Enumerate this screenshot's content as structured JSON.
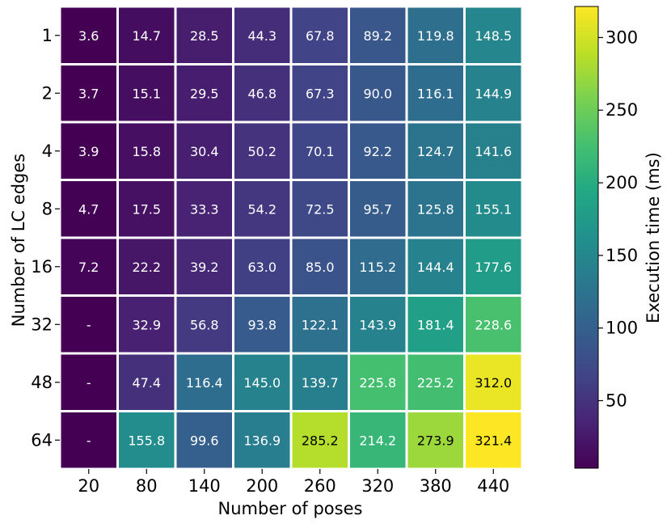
{
  "chart_data": {
    "type": "heatmap",
    "xlabel": "Number of poses",
    "ylabel": "Number of LC edges",
    "x_categories": [
      "20",
      "80",
      "140",
      "200",
      "260",
      "320",
      "380",
      "440"
    ],
    "y_categories": [
      "1",
      "2",
      "4",
      "8",
      "16",
      "32",
      "48",
      "64"
    ],
    "values": [
      [
        3.6,
        14.7,
        28.5,
        44.3,
        67.8,
        89.2,
        119.8,
        148.5
      ],
      [
        3.7,
        15.1,
        29.5,
        46.8,
        67.3,
        90.0,
        116.1,
        144.9
      ],
      [
        3.9,
        15.8,
        30.4,
        50.2,
        70.1,
        92.2,
        124.7,
        141.6
      ],
      [
        4.7,
        17.5,
        33.3,
        54.2,
        72.5,
        95.7,
        125.8,
        155.1
      ],
      [
        7.2,
        22.2,
        39.2,
        63.0,
        85.0,
        115.2,
        144.4,
        177.6
      ],
      [
        null,
        32.9,
        56.8,
        93.8,
        122.1,
        143.9,
        181.4,
        228.6
      ],
      [
        null,
        47.4,
        116.4,
        145.0,
        139.7,
        225.8,
        225.2,
        312.0
      ],
      [
        null,
        155.8,
        99.6,
        136.9,
        285.2,
        214.2,
        273.9,
        321.4
      ]
    ],
    "cell_labels": [
      [
        "3.6",
        "14.7",
        "28.5",
        "44.3",
        "67.8",
        "89.2",
        "119.8",
        "148.5"
      ],
      [
        "3.7",
        "15.1",
        "29.5",
        "46.8",
        "67.3",
        "90.0",
        "116.1",
        "144.9"
      ],
      [
        "3.9",
        "15.8",
        "30.4",
        "50.2",
        "70.1",
        "92.2",
        "124.7",
        "141.6"
      ],
      [
        "4.7",
        "17.5",
        "33.3",
        "54.2",
        "72.5",
        "95.7",
        "125.8",
        "155.1"
      ],
      [
        "7.2",
        "22.2",
        "39.2",
        "63.0",
        "85.0",
        "115.2",
        "144.4",
        "177.6"
      ],
      [
        "-",
        "32.9",
        "56.8",
        "93.8",
        "122.1",
        "143.9",
        "181.4",
        "228.6"
      ],
      [
        "-",
        "47.4",
        "116.4",
        "145.0",
        "139.7",
        "225.8",
        "225.2",
        "312.0"
      ],
      [
        "-",
        "155.8",
        "99.6",
        "136.9",
        "285.2",
        "214.2",
        "273.9",
        "321.4"
      ]
    ],
    "missing_value_fill": 3.5,
    "colormap": "viridis",
    "vmin": 3.5,
    "vmax": 321.4,
    "colorbar": {
      "label": "Execution time (ms)",
      "ticks": [
        50,
        100,
        150,
        200,
        250,
        300
      ],
      "tick_labels": [
        "50",
        "100",
        "150",
        "200",
        "250",
        "300"
      ]
    },
    "cell_text_colors": {
      "light": "#ffffff",
      "dark": "#000000"
    },
    "grid_line_color": "#ffffff"
  }
}
